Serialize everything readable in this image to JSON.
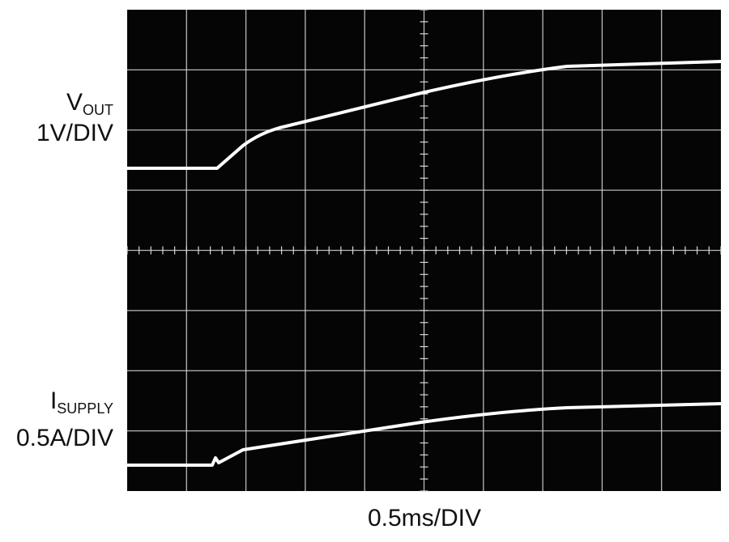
{
  "channel1": {
    "symbol": "V",
    "subscript": "OUT",
    "scale": "1V/DIV"
  },
  "channel2": {
    "symbol": "I",
    "subscript": "SUPPLY",
    "scale": "0.5A/DIV"
  },
  "timebase": "0.5ms/DIV"
}
